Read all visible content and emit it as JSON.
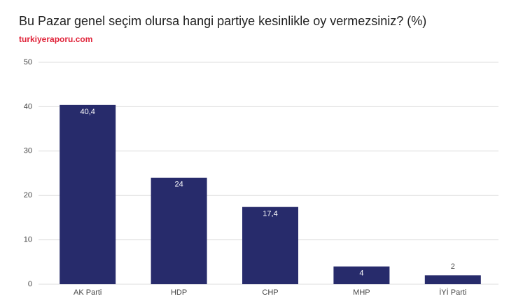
{
  "chart_data": {
    "type": "bar",
    "title": "Bu Pazar genel seçim olursa hangi partiye kesinlikle oy vermezsiniz? (%)",
    "subtitle": "turkiyeraporu.com",
    "categories": [
      "AK Parti",
      "HDP",
      "CHP",
      "MHP",
      "İYİ Parti"
    ],
    "values": [
      40.4,
      24,
      17.4,
      4,
      2
    ],
    "value_labels": [
      "40,4",
      "24",
      "17,4",
      "4",
      "2"
    ],
    "color": "#272b6b",
    "ylim": [
      0,
      50
    ],
    "yticks": [
      0,
      10,
      20,
      30,
      40,
      50
    ],
    "grid": true
  }
}
